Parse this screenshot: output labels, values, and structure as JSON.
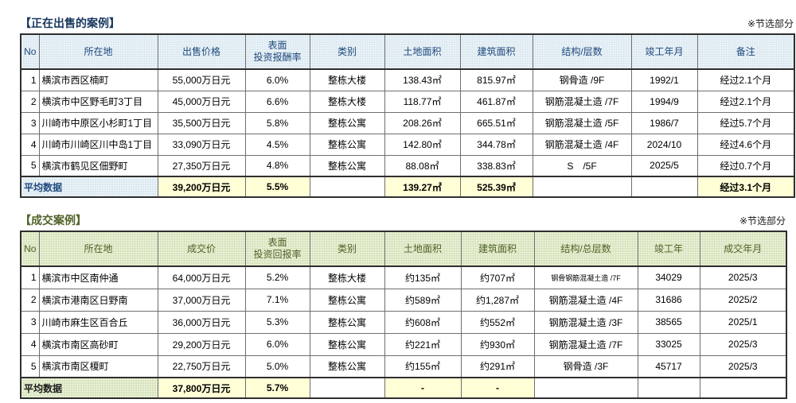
{
  "sale": {
    "title": "【正在出售的案例】",
    "note": "※节选部分",
    "columns": [
      "No",
      "所在地",
      "出售价格",
      "表面\n投资报酬率",
      "类别",
      "土地面积",
      "建筑面积",
      "结构/层数",
      "竣工年月",
      "备注"
    ],
    "rows": [
      [
        "1",
        "横滨市西区楠町",
        "55,000万日元",
        "6.0%",
        "整栋大楼",
        "138.43㎡",
        "815.97㎡",
        "钢骨造 /9F",
        "1992/1",
        "经过2.1个月"
      ],
      [
        "2",
        "横滨市中区野毛町3丁目",
        "45,000万日元",
        "6.6%",
        "整栋大楼",
        "118.77㎡",
        "461.87㎡",
        "钢筋混凝土造 /7F",
        "1994/9",
        "经过2.1个月"
      ],
      [
        "3",
        "川崎市中原区小杉町1丁目",
        "35,500万日元",
        "5.8%",
        "整栋公寓",
        "208.26㎡",
        "665.51㎡",
        "钢筋混凝土造 /5F",
        "1986/7",
        "经过5.7个月"
      ],
      [
        "4",
        "川崎市川崎区川中岛1丁目",
        "33,090万日元",
        "4.5%",
        "整栋公寓",
        "142.80㎡",
        "344.78㎡",
        "钢筋混凝土造 /4F",
        "2024/10",
        "经过4.6个月"
      ],
      [
        "5",
        "横滨市鹤见区佃野町",
        "27,350万日元",
        "4.8%",
        "整栋公寓",
        "88.08㎡",
        "338.83㎡",
        "S　/5F",
        "2025/5",
        "经过0.7个月"
      ]
    ],
    "average": {
      "label": "平均数据",
      "price": "39,200万日元",
      "yield": "5.5%",
      "land_area": "139.27㎡",
      "building_area": "525.39㎡",
      "remark": "经过3.1个月"
    }
  },
  "sold": {
    "title": "【成交案例】",
    "note": "※节选部分",
    "columns": [
      "No",
      "所在地",
      "成交价",
      "表面\n投资回报率",
      "类别",
      "土地面积",
      "建筑面积",
      "结构/总层数",
      "竣工年",
      "成交年月"
    ],
    "rows": [
      [
        "1",
        "横滨市中区南仲通",
        "64,000万日元",
        "5.2%",
        "整栋大楼",
        "约135㎡",
        "约707㎡",
        {
          "t": "钢骨钢筋混凝土造 /7F",
          "small": true
        },
        "34029",
        "2025/3"
      ],
      [
        "2",
        "横滨市港南区日野南",
        "37,000万日元",
        "7.1%",
        "整栋公寓",
        "约589㎡",
        "约1,287㎡",
        "钢筋混凝土造 /4F",
        "31686",
        "2025/2"
      ],
      [
        "3",
        "川崎市麻生区百合丘",
        "36,000万日元",
        "5.3%",
        "整栋公寓",
        "约608㎡",
        "约552㎡",
        "钢筋混凝土造 /3F",
        "38565",
        "2025/1"
      ],
      [
        "4",
        "横滨市南区高砂町",
        "29,200万日元",
        "6.0%",
        "整栋公寓",
        "约221㎡",
        "约930㎡",
        "钢筋混凝土造 /7F",
        "33025",
        "2025/3"
      ],
      [
        "5",
        "横滨市南区榎町",
        "22,750万日元",
        "5.0%",
        "整栋公寓",
        "约155㎡",
        "约291㎡",
        "钢骨造 /3F",
        "45717",
        "2025/3"
      ]
    ],
    "average": {
      "label": "平均数据",
      "price": "37,800万日元",
      "yield": "5.7%",
      "land_area": "-",
      "building_area": "-"
    }
  },
  "colors": {
    "sale_title": "#17375E",
    "sale_header_bg": "#DCE9F1",
    "sale_header_text": "#1F497D",
    "sold_title": "#4F6228",
    "sold_header_bg": "#D8E4BC",
    "sold_header_text": "#4F6228",
    "average_highlight": "#FFFFCC"
  }
}
